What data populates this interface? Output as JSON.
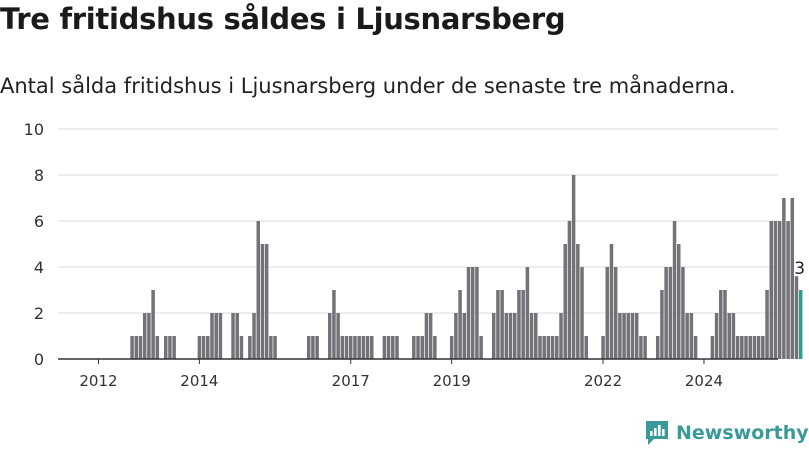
{
  "title": "Tre fritidshus såldes i Ljusnarsberg",
  "subtitle": "Antal sålda fritidshus i Ljusnarsberg under de senaste tre månaderna.",
  "brand": {
    "name": "Newsworthy",
    "icon": "newsworthy-logo-icon",
    "color": "#3a9a97"
  },
  "colors": {
    "bar": "#737278",
    "highlight": "#2a9d8f",
    "grid": "#dddddd",
    "axis": "#333333"
  },
  "chart_data": {
    "type": "bar",
    "title": "Tre fritidshus såldes i Ljusnarsberg",
    "subtitle": "Antal sålda fritidshus i Ljusnarsberg under de senaste tre månaderna.",
    "xlabel": "",
    "ylabel": "",
    "ylim": [
      0,
      10
    ],
    "yticks": [
      "0",
      "2",
      "4",
      "6",
      "8",
      "10"
    ],
    "xticks": [
      "2012",
      "2014",
      "2017",
      "2019",
      "2022",
      "2024"
    ],
    "grid": true,
    "legend": "none",
    "start": "2011-12",
    "frequency": "monthly",
    "last_label": "3",
    "values": [
      0,
      0,
      0,
      0,
      0,
      0,
      0,
      0,
      0,
      1,
      1,
      1,
      2,
      2,
      3,
      1,
      0,
      1,
      1,
      1,
      0,
      0,
      0,
      0,
      0,
      1,
      1,
      1,
      2,
      2,
      2,
      0,
      0,
      2,
      2,
      1,
      0,
      1,
      2,
      6,
      5,
      5,
      1,
      1,
      0,
      0,
      0,
      0,
      0,
      0,
      0,
      1,
      1,
      1,
      0,
      0,
      2,
      3,
      2,
      1,
      1,
      1,
      1,
      1,
      1,
      1,
      1,
      0,
      0,
      1,
      1,
      1,
      1,
      0,
      0,
      0,
      1,
      1,
      1,
      2,
      2,
      1,
      0,
      0,
      0,
      1,
      2,
      3,
      2,
      4,
      4,
      4,
      1,
      0,
      0,
      2,
      3,
      3,
      2,
      2,
      2,
      3,
      3,
      4,
      2,
      2,
      1,
      1,
      1,
      1,
      1,
      2,
      5,
      6,
      8,
      5,
      4,
      1,
      0,
      0,
      0,
      1,
      4,
      5,
      4,
      2,
      2,
      2,
      2,
      2,
      1,
      1,
      0,
      0,
      1,
      3,
      4,
      4,
      6,
      5,
      4,
      2,
      2,
      1,
      0,
      0,
      0,
      1,
      2,
      3,
      3,
      2,
      2,
      1,
      1,
      1,
      1,
      1,
      1,
      1,
      3,
      6,
      6,
      6,
      7,
      6,
      7,
      3.6,
      3
    ]
  }
}
